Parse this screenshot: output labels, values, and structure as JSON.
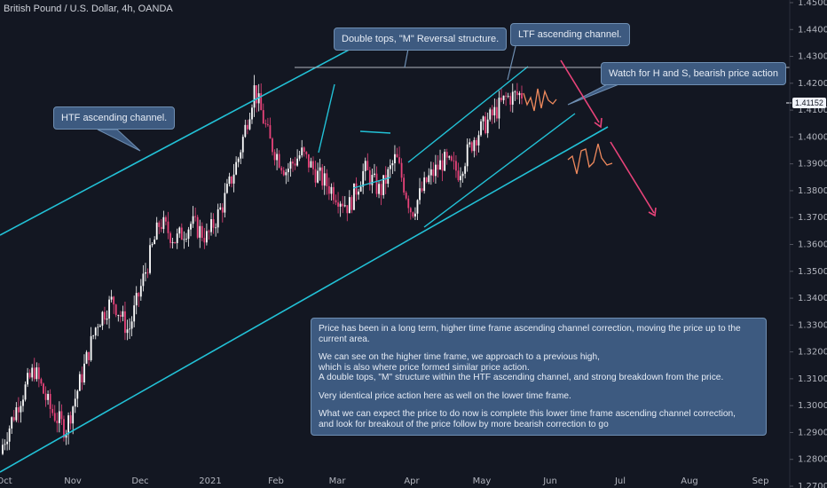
{
  "header": {
    "title": "British Pound / U.S. Dollar, 4h, OANDA"
  },
  "chart_data": {
    "type": "candlestick",
    "y_ticks": [
      "1.45000",
      "1.44000",
      "1.43000",
      "1.42000",
      "1.41000",
      "1.40000",
      "1.39000",
      "1.38000",
      "1.37000",
      "1.36000",
      "1.35000",
      "1.34000",
      "1.33000",
      "1.32000",
      "1.31000",
      "1.30000",
      "1.29000",
      "1.28000",
      "1.27000"
    ],
    "ylim": [
      1.27,
      1.45
    ],
    "x_ticks": [
      "Oct",
      "Nov",
      "Dec",
      "2021",
      "Feb",
      "Mar",
      "Apr",
      "May",
      "Jun",
      "Jul",
      "Aug",
      "Sep"
    ],
    "current_price": "1.41152",
    "price_path": [
      [
        1.282,
        1.289
      ],
      [
        1.296,
        1.306
      ],
      [
        1.315,
        1.312
      ],
      [
        1.302,
        1.296
      ],
      [
        1.289,
        1.293
      ],
      [
        1.303,
        1.318
      ],
      [
        1.326,
        1.336
      ],
      [
        1.346,
        1.333
      ],
      [
        1.322,
        1.333
      ],
      [
        1.345,
        1.352
      ],
      [
        1.366,
        1.371
      ],
      [
        1.36,
        1.363
      ],
      [
        1.37,
        1.366
      ],
      [
        1.361,
        1.364
      ],
      [
        1.372,
        1.378
      ],
      [
        1.386,
        1.399
      ],
      [
        1.412,
        1.424
      ],
      [
        1.404,
        1.392
      ],
      [
        1.386,
        1.389
      ],
      [
        1.396,
        1.392
      ],
      [
        1.38,
        1.392
      ],
      [
        1.384,
        1.376
      ],
      [
        1.368,
        1.38
      ],
      [
        1.39,
        1.386
      ],
      [
        1.378,
        1.381
      ],
      [
        1.391,
        1.394
      ],
      [
        1.374,
        1.37
      ],
      [
        1.378,
        1.39
      ],
      [
        1.385,
        1.397
      ],
      [
        1.391,
        1.383
      ],
      [
        1.393,
        1.407
      ],
      [
        1.4,
        1.414
      ],
      [
        1.411,
        1.418
      ],
      [
        1.42,
        1.412
      ]
    ],
    "annotations": [
      "Double tops, \"M\" Reversal structure.",
      "LTF ascending channel.",
      "HTF ascending channel.",
      "Watch for H and S, bearish price action"
    ],
    "summary": [
      "Price has been in a long term, higher time frame ascending channel correction, moving the price up to the current area.",
      "We can see on the higher time frame, we approach to a previous high,\nwhich is also where price formed similar price action.\nA double tops, \"M\" structure within the HTF ascending channel, and strong breakdown from the price.",
      "Very identical price action here as well on the lower time frame.",
      "What we can expect the price to do now is complete this lower time frame ascending channel correction,\nand look for breakout of the price follow by more bearish correction to go"
    ],
    "colors": {
      "up": "#ffffff",
      "down": "#e9437a",
      "channel": "#22c1d6",
      "projection": "#f08a5d",
      "arrow": "#e9437a",
      "resistance": "#b2b5be"
    },
    "grid": false
  }
}
